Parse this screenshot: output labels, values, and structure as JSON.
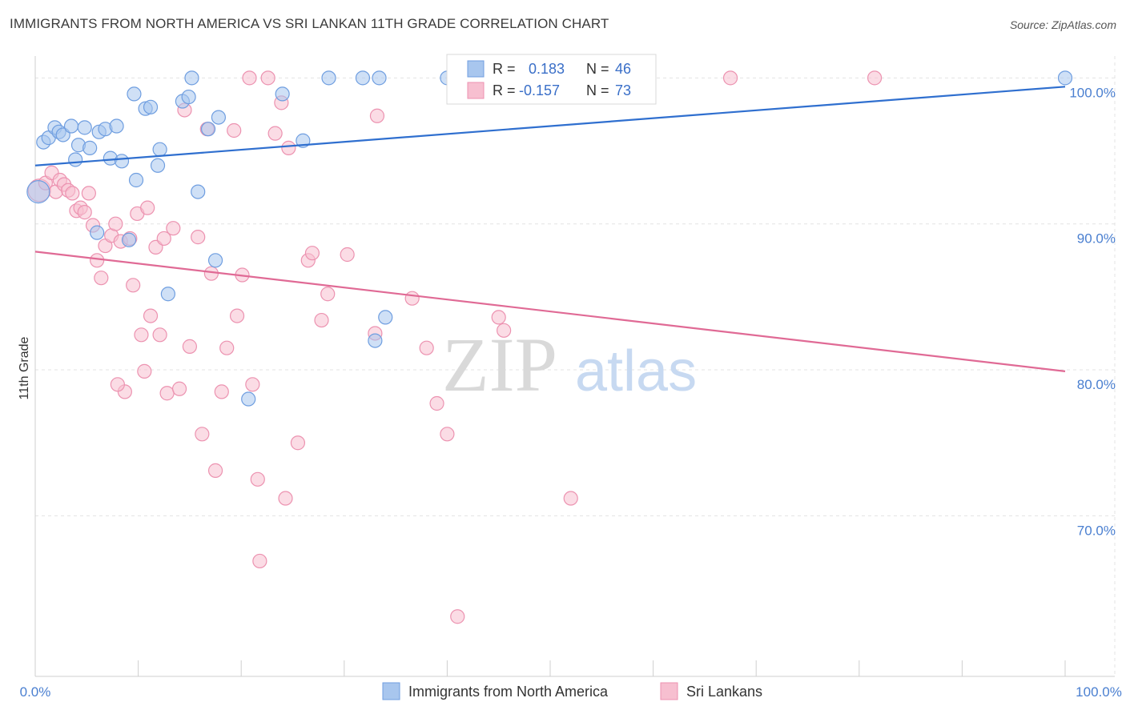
{
  "header": {
    "title": "IMMIGRANTS FROM NORTH AMERICA VS SRI LANKAN 11TH GRADE CORRELATION CHART",
    "source": "Source: ZipAtlas.com"
  },
  "watermark": {
    "zip": "ZIP",
    "atlas": "atlas"
  },
  "stats_box": {
    "rows": [
      {
        "r_label": "R =",
        "r_value": "0.183",
        "n_label": "N =",
        "n_value": "46"
      },
      {
        "r_label": "R =",
        "r_value": "-0.157",
        "n_label": "N =",
        "n_value": "73"
      }
    ]
  },
  "legend": {
    "items": [
      {
        "label": "Immigrants from North America"
      },
      {
        "label": "Sri Lankans"
      }
    ]
  },
  "colors": {
    "blue_fill": "#a8c6ee",
    "blue_stroke": "#6f9ee0",
    "blue_line": "#2f6fcf",
    "pink_fill": "#f7bfd0",
    "pink_stroke": "#ec92b0",
    "pink_line": "#e06a95",
    "grid": "#e3e3e3",
    "axis_text": "#4a7fd0"
  },
  "chart_data": {
    "type": "scatter",
    "title": "IMMIGRANTS FROM NORTH AMERICA VS SRI LANKAN 11TH GRADE CORRELATION CHART",
    "xlabel": "",
    "ylabel": "11th Grade",
    "xlim": [
      0,
      100
    ],
    "ylim": [
      59,
      101.5
    ],
    "x_tick_labels": [
      "0.0%",
      "100.0%"
    ],
    "y_ticks": [
      {
        "value": 100,
        "label": "100.0%"
      },
      {
        "value": 90,
        "label": "90.0%"
      },
      {
        "value": 80,
        "label": "80.0%"
      },
      {
        "value": 70,
        "label": "70.0%"
      }
    ],
    "grid": true,
    "legend_position": "bottom-center",
    "series": [
      {
        "name": "Immigrants from North America",
        "color": "#a8c6ee",
        "trend": {
          "x": [
            0,
            100
          ],
          "y": [
            94.0,
            99.4
          ]
        },
        "points": [
          [
            0.3,
            92.2
          ],
          [
            0.8,
            95.6
          ],
          [
            1.3,
            95.9
          ],
          [
            1.9,
            96.6
          ],
          [
            2.3,
            96.3
          ],
          [
            2.7,
            96.1
          ],
          [
            3.5,
            96.7
          ],
          [
            3.9,
            94.4
          ],
          [
            4.2,
            95.4
          ],
          [
            4.8,
            96.6
          ],
          [
            5.3,
            95.2
          ],
          [
            6.2,
            96.3
          ],
          [
            6.8,
            96.5
          ],
          [
            7.3,
            94.5
          ],
          [
            7.9,
            96.7
          ],
          [
            8.4,
            94.3
          ],
          [
            9.1,
            88.9
          ],
          [
            9.6,
            98.9
          ],
          [
            9.8,
            93.0
          ],
          [
            10.7,
            97.9
          ],
          [
            11.2,
            98.0
          ],
          [
            11.9,
            94.0
          ],
          [
            12.1,
            95.1
          ],
          [
            12.9,
            85.2
          ],
          [
            14.3,
            98.4
          ],
          [
            14.9,
            98.7
          ],
          [
            15.2,
            100.0
          ],
          [
            15.8,
            92.2
          ],
          [
            16.8,
            96.5
          ],
          [
            17.5,
            87.5
          ],
          [
            17.8,
            97.3
          ],
          [
            20.7,
            78.0
          ],
          [
            24.0,
            98.9
          ],
          [
            26.0,
            95.7
          ],
          [
            28.5,
            100.0
          ],
          [
            31.8,
            100.0
          ],
          [
            33.0,
            82.0
          ],
          [
            33.4,
            100.0
          ],
          [
            34.0,
            83.6
          ],
          [
            40.0,
            100.0
          ],
          [
            41.5,
            100.0
          ],
          [
            48.5,
            100.0
          ],
          [
            50.0,
            100.0
          ],
          [
            51.5,
            100.0
          ],
          [
            100.0,
            100.0
          ],
          [
            6.0,
            89.4
          ]
        ]
      },
      {
        "name": "Sri Lankans",
        "color": "#f7bfd0",
        "trend": {
          "x": [
            0,
            100
          ],
          "y": [
            88.1,
            79.9
          ]
        },
        "points": [
          [
            0.4,
            92.3
          ],
          [
            1.0,
            92.8
          ],
          [
            1.6,
            93.5
          ],
          [
            2.0,
            92.2
          ],
          [
            2.4,
            93.0
          ],
          [
            2.8,
            92.7
          ],
          [
            3.2,
            92.3
          ],
          [
            3.6,
            92.1
          ],
          [
            4.0,
            90.9
          ],
          [
            4.4,
            91.1
          ],
          [
            4.8,
            90.8
          ],
          [
            5.2,
            92.1
          ],
          [
            5.6,
            89.9
          ],
          [
            6.0,
            87.5
          ],
          [
            6.4,
            86.3
          ],
          [
            6.8,
            88.5
          ],
          [
            7.4,
            89.2
          ],
          [
            7.8,
            90.0
          ],
          [
            8.3,
            88.8
          ],
          [
            8.7,
            78.5
          ],
          [
            9.2,
            89.0
          ],
          [
            9.5,
            85.8
          ],
          [
            9.9,
            90.7
          ],
          [
            10.3,
            82.4
          ],
          [
            10.6,
            79.9
          ],
          [
            10.9,
            91.1
          ],
          [
            11.2,
            83.7
          ],
          [
            11.7,
            88.4
          ],
          [
            12.1,
            82.4
          ],
          [
            12.5,
            89.0
          ],
          [
            12.8,
            78.4
          ],
          [
            13.4,
            89.7
          ],
          [
            14.0,
            78.7
          ],
          [
            14.5,
            97.8
          ],
          [
            15.0,
            81.6
          ],
          [
            15.8,
            89.1
          ],
          [
            16.2,
            75.6
          ],
          [
            16.7,
            96.5
          ],
          [
            17.1,
            86.6
          ],
          [
            17.5,
            73.1
          ],
          [
            18.1,
            78.5
          ],
          [
            18.6,
            81.5
          ],
          [
            19.3,
            96.4
          ],
          [
            19.6,
            83.7
          ],
          [
            20.1,
            86.5
          ],
          [
            20.8,
            100.0
          ],
          [
            21.1,
            79.0
          ],
          [
            21.6,
            72.5
          ],
          [
            21.8,
            66.9
          ],
          [
            22.6,
            100.0
          ],
          [
            23.3,
            96.2
          ],
          [
            23.9,
            98.3
          ],
          [
            24.3,
            71.2
          ],
          [
            24.6,
            95.2
          ],
          [
            25.5,
            75.0
          ],
          [
            26.5,
            87.5
          ],
          [
            26.9,
            88.0
          ],
          [
            27.8,
            83.4
          ],
          [
            28.4,
            85.2
          ],
          [
            30.3,
            87.9
          ],
          [
            33.0,
            82.5
          ],
          [
            33.2,
            97.4
          ],
          [
            36.6,
            84.9
          ],
          [
            38.0,
            81.5
          ],
          [
            39.0,
            77.7
          ],
          [
            40.0,
            75.6
          ],
          [
            45.0,
            83.6
          ],
          [
            45.5,
            82.7
          ],
          [
            52.0,
            71.2
          ],
          [
            67.5,
            100.0
          ],
          [
            81.5,
            100.0
          ],
          [
            41.0,
            63.1
          ],
          [
            8.0,
            79.0
          ]
        ]
      }
    ]
  }
}
